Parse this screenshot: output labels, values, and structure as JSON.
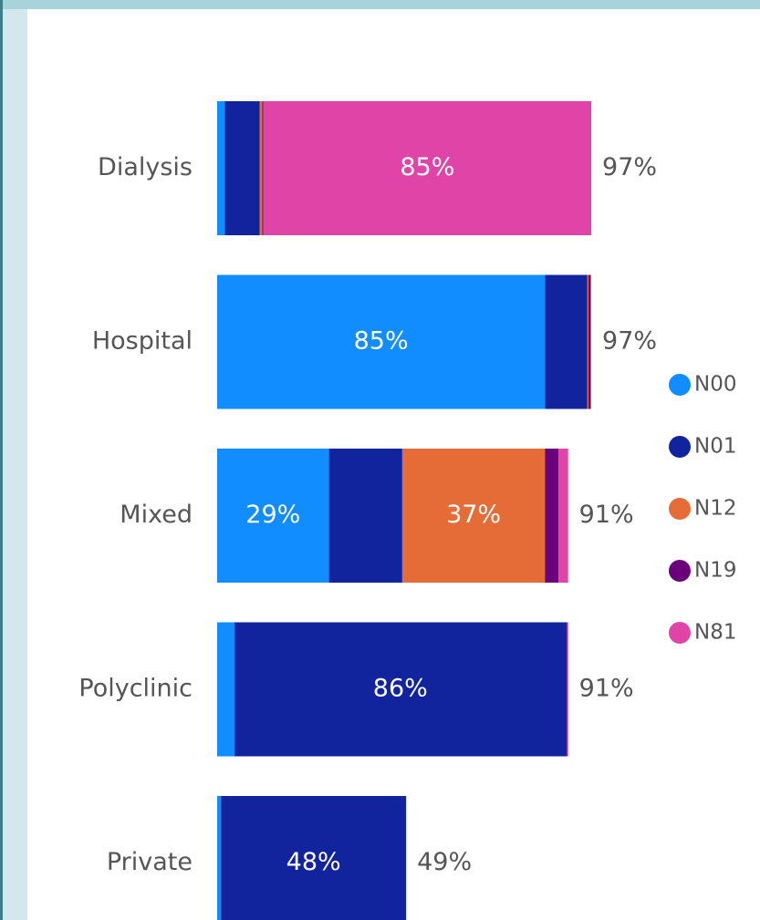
{
  "chart_data": {
    "type": "stacked_bar_horizontal",
    "categories": [
      "Dialysis",
      "Hospital",
      "Mixed",
      "Polyclinic",
      "Private"
    ],
    "xlim": [
      0,
      100
    ],
    "series": [
      {
        "name": "N00",
        "color": "#118dff",
        "values": [
          2,
          85,
          29,
          4.5,
          1
        ],
        "value_labels": [
          null,
          "85%",
          "29%",
          null,
          null
        ]
      },
      {
        "name": "N01",
        "color": "#12239e",
        "values": [
          9,
          11,
          19,
          86,
          48
        ],
        "value_labels": [
          null,
          null,
          null,
          "86%",
          "48%"
        ]
      },
      {
        "name": "N12",
        "color": "#e66c37",
        "values": [
          0.7,
          0.3,
          37,
          0,
          0
        ],
        "value_labels": [
          null,
          null,
          "37%",
          null,
          null
        ]
      },
      {
        "name": "N19",
        "color": "#6b007b",
        "values": [
          0.3,
          0.5,
          3.5,
          0.3,
          0
        ],
        "value_labels": [
          null,
          null,
          null,
          null,
          null
        ]
      },
      {
        "name": "N81",
        "color": "#e044a7",
        "values": [
          85,
          0.2,
          2.5,
          0.2,
          0
        ],
        "value_labels": [
          "85%",
          null,
          null,
          null,
          null
        ]
      }
    ],
    "totals": [
      97,
      97,
      91,
      91,
      49
    ],
    "total_labels": [
      "97%",
      "97%",
      "91%",
      "91%",
      "49%"
    ],
    "legend": "right"
  }
}
